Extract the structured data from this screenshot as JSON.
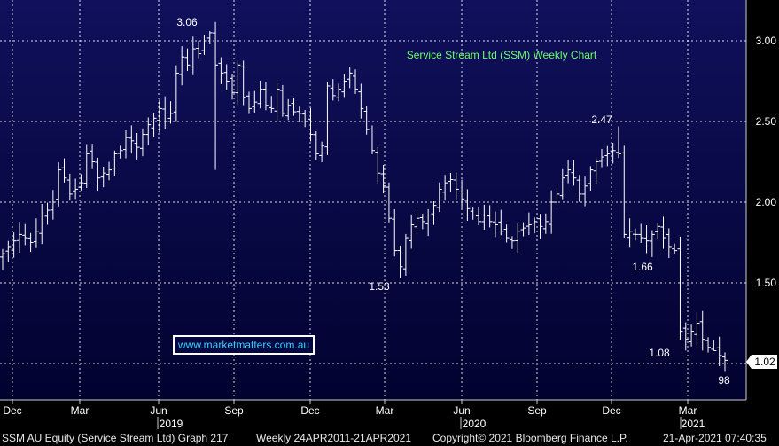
{
  "chart_data": {
    "type": "ohlc",
    "title": "Service Stream Ltd (SSM) Weekly Chart",
    "ylim": [
      1.0,
      3.25
    ],
    "yticks": [
      "1.50",
      "2.00",
      "2.50",
      "3.00"
    ],
    "current_price_label": "1.02",
    "x_month_labels": [
      "Dec",
      "Mar",
      "Jun",
      "Sep",
      "Dec",
      "Mar",
      "Jun",
      "Sep",
      "Dec",
      "Mar"
    ],
    "x_year_labels": [
      "2019",
      "2020",
      "2021"
    ],
    "annotations": [
      "3.06",
      "2.47",
      "1.53",
      "1.66",
      "1.08",
      "98"
    ],
    "colors": {
      "background_top": "#10105c",
      "background_bottom": "#020230",
      "bars": "#ffffff",
      "grid": "#ffffff",
      "title": "#66ff66",
      "axis_panel": "#000000"
    },
    "series": [
      {
        "values": [
          1.68,
          1.72,
          1.76,
          1.8,
          1.78,
          1.75,
          1.82,
          1.92,
          1.95,
          2.0,
          2.2,
          2.15,
          2.05,
          2.08,
          2.12,
          2.3,
          2.25,
          2.15,
          2.18,
          2.2,
          2.3,
          2.32,
          2.4,
          2.38,
          2.34,
          2.42,
          2.48,
          2.52,
          2.58,
          2.5,
          2.55,
          2.8,
          2.9,
          2.85,
          2.95,
          2.92,
          3.0,
          3.05,
          2.85,
          2.8,
          2.75,
          2.68,
          2.85,
          2.65,
          2.58,
          2.62,
          2.7,
          2.6,
          2.58,
          2.7,
          2.55,
          2.6,
          2.56,
          2.55,
          2.5,
          2.42,
          2.3,
          2.35,
          2.72,
          2.66,
          2.7,
          2.75,
          2.8,
          2.7,
          2.58,
          2.45,
          2.32,
          2.18,
          2.1,
          1.9,
          1.7,
          1.6,
          1.78,
          1.86,
          1.9,
          1.88,
          1.92,
          1.98,
          2.08,
          2.12,
          2.14,
          2.08,
          2.02,
          1.96,
          1.92,
          1.88,
          1.92,
          1.88,
          1.86,
          1.82,
          1.78,
          1.76,
          1.82,
          1.84,
          1.86,
          1.88,
          1.85,
          1.88,
          2.0,
          2.05,
          2.15,
          2.2,
          2.15,
          2.05,
          2.1,
          2.2,
          2.25,
          2.28,
          2.3,
          2.32,
          2.3,
          1.8,
          1.82,
          1.8,
          1.78,
          1.76,
          1.8,
          1.85,
          1.78,
          1.72,
          1.7,
          1.2,
          1.15,
          1.2,
          1.25,
          1.15,
          1.1,
          1.08,
          1.05,
          1.02
        ]
      }
    ]
  },
  "link": {
    "text": "www.marketmatters.com.au"
  },
  "footer": {
    "left": "SSM AU Equity (Service Stream Ltd) Graph 217",
    "range": "Weekly 24APR2011-21APR2021",
    "copyright": "Copyright© 2021 Bloomberg Finance L.P.",
    "timestamp": "21-Apr-2021 07:40:35"
  }
}
